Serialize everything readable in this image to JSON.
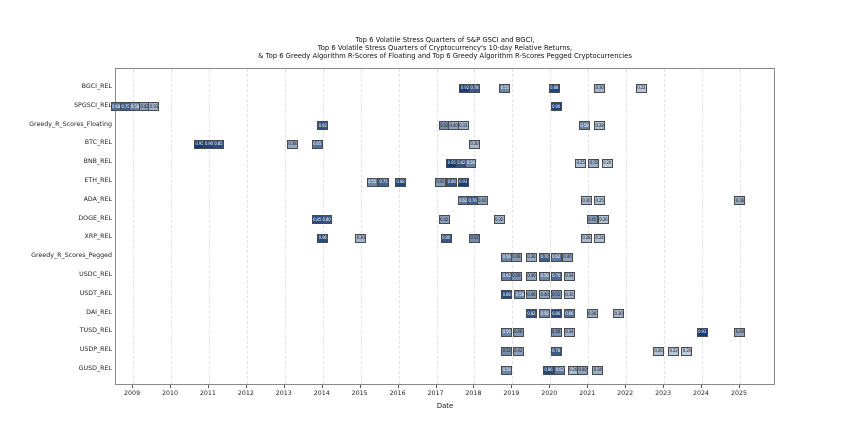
{
  "colors": {
    "cmap_low": "#e8f0f8",
    "cmap_high": "#08306b",
    "marker_border": "#4a4a4a",
    "axis_border": "#8a8a8a",
    "gridline": "#e2e2e2",
    "text": "#111111"
  },
  "chart_data": {
    "type": "scatter",
    "title_lines": [
      "Top 6 Volatile Stress Quarters of S&P GSCI and BGCI,",
      "Top 6 Volatile Stress Quarters of Cryptocurrency's 10-day Relative Returns,",
      "& Top 6 Greedy Algorithm R-Scores of Floating and Top 6 Greedy Algorithm R-Scores Pegged Cryptocurrencies"
    ],
    "xlabel": "Date",
    "xlim": [
      2008.55,
      2025.95
    ],
    "x_ticks": [
      2009,
      2010,
      2011,
      2012,
      2013,
      2014,
      2015,
      2016,
      2017,
      2018,
      2019,
      2020,
      2021,
      2022,
      2023,
      2024,
      2025
    ],
    "grid": "vertical-dashed",
    "legend": "none",
    "rows": [
      {
        "label": "BGCI_REL",
        "points": [
          {
            "x": 2017.75,
            "v": 0.92,
            "t": "0.92"
          },
          {
            "x": 2018.0,
            "v": 0.78,
            "t": "0.78"
          },
          {
            "x": 2018.8,
            "v": 0.55,
            "t": "0.55"
          },
          {
            "x": 2020.1,
            "v": 0.88,
            "t": "0.88"
          },
          {
            "x": 2021.3,
            "v": 0.3,
            "t": "0.30"
          },
          {
            "x": 2022.4,
            "v": 0.22,
            "t": "0.22"
          }
        ]
      },
      {
        "label": "SPGSCI_REL",
        "points": [
          {
            "x": 2008.55,
            "v": 0.68,
            "t": "0.68"
          },
          {
            "x": 2008.8,
            "v": 0.75,
            "t": "0.75"
          },
          {
            "x": 2009.05,
            "v": 0.58,
            "t": "0.58"
          },
          {
            "x": 2009.3,
            "v": 0.42,
            "t": "0.42"
          },
          {
            "x": 2009.55,
            "v": 0.33,
            "t": "0.33"
          },
          {
            "x": 2020.15,
            "v": 0.9,
            "t": "0.90"
          }
        ]
      },
      {
        "label": "Greedy_R_Scores_Floating",
        "points": [
          {
            "x": 2014.0,
            "v": 0.82,
            "t": "0.82"
          },
          {
            "x": 2017.2,
            "v": 0.52,
            "t": "0.52"
          },
          {
            "x": 2017.45,
            "v": 0.4,
            "t": "0.40"
          },
          {
            "x": 2017.7,
            "v": 0.33,
            "t": "0.33"
          },
          {
            "x": 2020.9,
            "v": 0.58,
            "t": "0.58"
          },
          {
            "x": 2021.3,
            "v": 0.28,
            "t": "0.28"
          }
        ]
      },
      {
        "label": "BTC_REL",
        "points": [
          {
            "x": 2010.75,
            "v": 0.95,
            "t": "0.95"
          },
          {
            "x": 2011.0,
            "v": 0.9,
            "t": "0.90"
          },
          {
            "x": 2011.25,
            "v": 0.85,
            "t": "0.85"
          },
          {
            "x": 2013.2,
            "v": 0.38,
            "t": "0.38"
          },
          {
            "x": 2013.85,
            "v": 0.65,
            "t": "0.65"
          },
          {
            "x": 2018.0,
            "v": 0.3,
            "t": "0.30"
          }
        ]
      },
      {
        "label": "BNB_REL",
        "points": [
          {
            "x": 2017.4,
            "v": 0.95,
            "t": "0.95"
          },
          {
            "x": 2017.65,
            "v": 0.82,
            "t": "0.82"
          },
          {
            "x": 2017.9,
            "v": 0.58,
            "t": "0.58"
          },
          {
            "x": 2020.8,
            "v": 0.25,
            "t": "0.25"
          },
          {
            "x": 2021.15,
            "v": 0.35,
            "t": "0.35"
          },
          {
            "x": 2021.5,
            "v": 0.2,
            "t": "0.20"
          }
        ]
      },
      {
        "label": "ETH_REL",
        "points": [
          {
            "x": 2015.3,
            "v": 0.55,
            "t": "0.55"
          },
          {
            "x": 2015.6,
            "v": 0.75,
            "t": "0.75"
          },
          {
            "x": 2016.05,
            "v": 0.88,
            "t": "0.88"
          },
          {
            "x": 2017.1,
            "v": 0.45,
            "t": "0.45"
          },
          {
            "x": 2017.4,
            "v": 0.8,
            "t": "0.80"
          },
          {
            "x": 2017.7,
            "v": 0.93,
            "t": "0.93"
          }
        ]
      },
      {
        "label": "ADA_REL",
        "points": [
          {
            "x": 2017.7,
            "v": 0.62,
            "t": "0.62"
          },
          {
            "x": 2017.95,
            "v": 0.76,
            "t": "0.76"
          },
          {
            "x": 2018.2,
            "v": 0.42,
            "t": "0.42"
          },
          {
            "x": 2020.95,
            "v": 0.3,
            "t": "0.30"
          },
          {
            "x": 2021.3,
            "v": 0.25,
            "t": "0.25"
          },
          {
            "x": 2025.0,
            "v": 0.36,
            "t": "0.36"
          }
        ]
      },
      {
        "label": "DOGE_REL",
        "points": [
          {
            "x": 2013.85,
            "v": 0.85,
            "t": "0.85"
          },
          {
            "x": 2014.1,
            "v": 0.8,
            "t": "0.80"
          },
          {
            "x": 2017.2,
            "v": 0.42,
            "t": "0.42"
          },
          {
            "x": 2018.65,
            "v": 0.32,
            "t": "0.32"
          },
          {
            "x": 2021.1,
            "v": 0.45,
            "t": "0.45"
          },
          {
            "x": 2021.4,
            "v": 0.26,
            "t": "0.26"
          }
        ]
      },
      {
        "label": "XRP_REL",
        "points": [
          {
            "x": 2014.0,
            "v": 0.86,
            "t": "0.86"
          },
          {
            "x": 2015.0,
            "v": 0.3,
            "t": "0.30"
          },
          {
            "x": 2017.25,
            "v": 0.8,
            "t": "0.80"
          },
          {
            "x": 2018.0,
            "v": 0.52,
            "t": "0.52"
          },
          {
            "x": 2020.95,
            "v": 0.28,
            "t": "0.28"
          },
          {
            "x": 2021.3,
            "v": 0.24,
            "t": "0.24"
          }
        ]
      },
      {
        "label": "Greedy_R_Scores_Pegged",
        "points": [
          {
            "x": 2018.85,
            "v": 0.56,
            "t": "0.56"
          },
          {
            "x": 2019.1,
            "v": 0.46,
            "t": "0.46"
          },
          {
            "x": 2019.5,
            "v": 0.36,
            "t": "0.36"
          },
          {
            "x": 2019.85,
            "v": 0.76,
            "t": "0.76"
          },
          {
            "x": 2020.15,
            "v": 0.62,
            "t": "0.62"
          },
          {
            "x": 2020.45,
            "v": 0.4,
            "t": "0.40"
          }
        ]
      },
      {
        "label": "USDC_REL",
        "points": [
          {
            "x": 2018.85,
            "v": 0.62,
            "t": "0.62"
          },
          {
            "x": 2019.1,
            "v": 0.5,
            "t": "0.50"
          },
          {
            "x": 2019.5,
            "v": 0.4,
            "t": "0.40"
          },
          {
            "x": 2019.85,
            "v": 0.56,
            "t": "0.56"
          },
          {
            "x": 2020.15,
            "v": 0.7,
            "t": "0.70"
          },
          {
            "x": 2020.5,
            "v": 0.34,
            "t": "0.34"
          }
        ]
      },
      {
        "label": "USDT_REL",
        "points": [
          {
            "x": 2018.85,
            "v": 0.86,
            "t": "0.86"
          },
          {
            "x": 2019.2,
            "v": 0.56,
            "t": "0.56"
          },
          {
            "x": 2019.5,
            "v": 0.46,
            "t": "0.46"
          },
          {
            "x": 2019.85,
            "v": 0.4,
            "t": "0.40"
          },
          {
            "x": 2020.15,
            "v": 0.52,
            "t": "0.52"
          },
          {
            "x": 2020.5,
            "v": 0.3,
            "t": "0.30"
          }
        ]
      },
      {
        "label": "DAI_REL",
        "points": [
          {
            "x": 2019.5,
            "v": 0.82,
            "t": "0.82"
          },
          {
            "x": 2019.85,
            "v": 0.56,
            "t": "0.56"
          },
          {
            "x": 2020.15,
            "v": 0.86,
            "t": "0.86"
          },
          {
            "x": 2020.5,
            "v": 0.66,
            "t": "0.66"
          },
          {
            "x": 2021.1,
            "v": 0.36,
            "t": "0.36"
          },
          {
            "x": 2021.8,
            "v": 0.3,
            "t": "0.30"
          }
        ]
      },
      {
        "label": "TUSD_REL",
        "points": [
          {
            "x": 2018.85,
            "v": 0.56,
            "t": "0.56"
          },
          {
            "x": 2019.15,
            "v": 0.46,
            "t": "0.46"
          },
          {
            "x": 2020.15,
            "v": 0.5,
            "t": "0.50"
          },
          {
            "x": 2020.5,
            "v": 0.34,
            "t": "0.34"
          },
          {
            "x": 2024.0,
            "v": 0.93,
            "t": "0.93"
          },
          {
            "x": 2025.0,
            "v": 0.4,
            "t": "0.40"
          }
        ]
      },
      {
        "label": "USDP_REL",
        "points": [
          {
            "x": 2018.85,
            "v": 0.52,
            "t": "0.52"
          },
          {
            "x": 2019.15,
            "v": 0.42,
            "t": "0.42"
          },
          {
            "x": 2020.15,
            "v": 0.78,
            "t": "0.78"
          },
          {
            "x": 2022.85,
            "v": 0.26,
            "t": "0.26"
          },
          {
            "x": 2023.25,
            "v": 0.22,
            "t": "0.22"
          },
          {
            "x": 2023.6,
            "v": 0.2,
            "t": "0.20"
          }
        ]
      },
      {
        "label": "GUSD_REL",
        "points": [
          {
            "x": 2018.85,
            "v": 0.56,
            "t": "0.56"
          },
          {
            "x": 2019.95,
            "v": 0.86,
            "t": "0.86"
          },
          {
            "x": 2020.25,
            "v": 0.62,
            "t": "0.62"
          },
          {
            "x": 2020.6,
            "v": 0.26,
            "t": "0.26"
          },
          {
            "x": 2020.85,
            "v": 0.4,
            "t": "0.40"
          },
          {
            "x": 2021.25,
            "v": 0.34,
            "t": "0.34"
          }
        ]
      }
    ]
  }
}
